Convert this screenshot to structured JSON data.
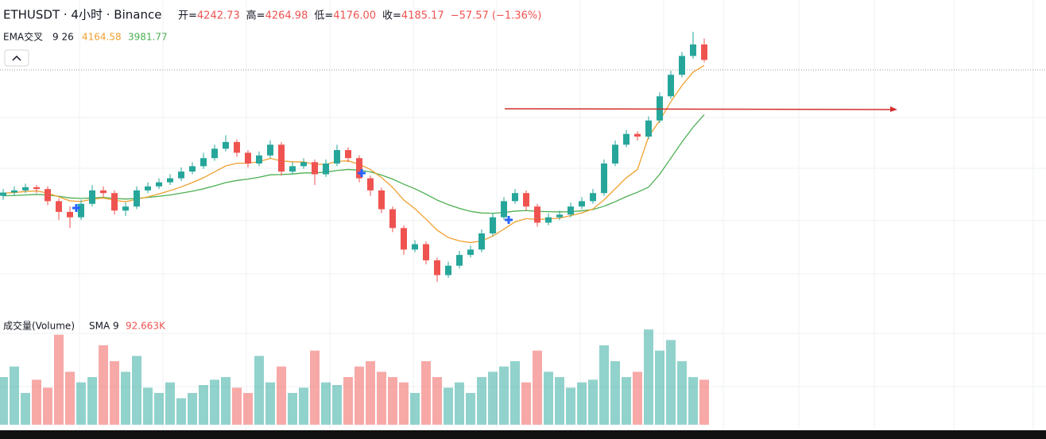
{
  "header": {
    "symbol": "ETHUSDT · 4小时 · Binance",
    "ohlc": [
      {
        "label": "开=",
        "value": "4242.73"
      },
      {
        "label": "高=",
        "value": "4264.98"
      },
      {
        "label": "低=",
        "value": "4176.00"
      },
      {
        "label": "收=",
        "value": "4185.17"
      }
    ],
    "change": "−57.57 (−1.36%)",
    "indicator": "EMA交叉",
    "params": "9 26",
    "ema_values": [
      "4164.58",
      "3981.77"
    ],
    "volume_title": "成交量(Volume)",
    "volume_sma_label": "SMA 9",
    "volume_sma": "92.663K"
  },
  "chart_data": {
    "type": "candlestick",
    "up_color": "#26a69a",
    "down_color": "#ef5350",
    "candles": [
      [
        3680,
        3705,
        3665,
        3692
      ],
      [
        3692,
        3715,
        3680,
        3700
      ],
      [
        3700,
        3725,
        3690,
        3712
      ],
      [
        3712,
        3720,
        3690,
        3705
      ],
      [
        3705,
        3715,
        3645,
        3660
      ],
      [
        3660,
        3670,
        3590,
        3620
      ],
      [
        3620,
        3640,
        3560,
        3600
      ],
      [
        3600,
        3665,
        3590,
        3650
      ],
      [
        3650,
        3720,
        3640,
        3700
      ],
      [
        3700,
        3715,
        3675,
        3690
      ],
      [
        3690,
        3700,
        3610,
        3625
      ],
      [
        3625,
        3655,
        3605,
        3640
      ],
      [
        3640,
        3715,
        3630,
        3700
      ],
      [
        3700,
        3730,
        3690,
        3715
      ],
      [
        3715,
        3745,
        3705,
        3730
      ],
      [
        3730,
        3760,
        3720,
        3745
      ],
      [
        3745,
        3785,
        3735,
        3770
      ],
      [
        3770,
        3805,
        3760,
        3790
      ],
      [
        3790,
        3840,
        3780,
        3820
      ],
      [
        3820,
        3870,
        3810,
        3855
      ],
      [
        3855,
        3905,
        3845,
        3880
      ],
      [
        3880,
        3890,
        3825,
        3840
      ],
      [
        3840,
        3850,
        3785,
        3800
      ],
      [
        3800,
        3845,
        3790,
        3830
      ],
      [
        3830,
        3885,
        3820,
        3870
      ],
      [
        3870,
        3880,
        3755,
        3770
      ],
      [
        3770,
        3805,
        3760,
        3790
      ],
      [
        3790,
        3820,
        3780,
        3805
      ],
      [
        3805,
        3815,
        3720,
        3760
      ],
      [
        3760,
        3815,
        3750,
        3800
      ],
      [
        3800,
        3870,
        3790,
        3850
      ],
      [
        3850,
        3860,
        3805,
        3820
      ],
      [
        3820,
        3830,
        3730,
        3745
      ],
      [
        3745,
        3755,
        3680,
        3700
      ],
      [
        3700,
        3710,
        3615,
        3630
      ],
      [
        3630,
        3640,
        3545,
        3560
      ],
      [
        3560,
        3570,
        3460,
        3480
      ],
      [
        3480,
        3515,
        3470,
        3500
      ],
      [
        3500,
        3510,
        3425,
        3440
      ],
      [
        3440,
        3450,
        3360,
        3385
      ],
      [
        3385,
        3435,
        3375,
        3420
      ],
      [
        3420,
        3475,
        3410,
        3460
      ],
      [
        3460,
        3495,
        3450,
        3480
      ],
      [
        3480,
        3555,
        3470,
        3540
      ],
      [
        3540,
        3615,
        3530,
        3600
      ],
      [
        3600,
        3675,
        3590,
        3660
      ],
      [
        3660,
        3705,
        3650,
        3690
      ],
      [
        3690,
        3700,
        3625,
        3640
      ],
      [
        3640,
        3650,
        3565,
        3580
      ],
      [
        3580,
        3615,
        3570,
        3600
      ],
      [
        3600,
        3625,
        3590,
        3610
      ],
      [
        3610,
        3655,
        3600,
        3640
      ],
      [
        3640,
        3675,
        3630,
        3660
      ],
      [
        3660,
        3705,
        3650,
        3690
      ],
      [
        3690,
        3815,
        3680,
        3800
      ],
      [
        3800,
        3885,
        3790,
        3870
      ],
      [
        3870,
        3925,
        3860,
        3910
      ],
      [
        3910,
        3920,
        3885,
        3900
      ],
      [
        3900,
        3975,
        3890,
        3960
      ],
      [
        3960,
        4065,
        3950,
        4050
      ],
      [
        4050,
        4145,
        4040,
        4130
      ],
      [
        4130,
        4215,
        4120,
        4200
      ],
      [
        4200,
        4290,
        4190,
        4242.73
      ],
      [
        4242.73,
        4264.98,
        4176,
        4185.17
      ]
    ],
    "ema_fast": {
      "color": "#f0a030",
      "values": [
        3690,
        3692,
        3696,
        3698,
        3690,
        3676,
        3661,
        3659,
        3667,
        3672,
        3663,
        3658,
        3667,
        3676,
        3687,
        3699,
        3713,
        3729,
        3747,
        3769,
        3791,
        3801,
        3801,
        3807,
        3819,
        3810,
        3806,
        3806,
        3797,
        3797,
        3808,
        3810,
        3797,
        3778,
        3748,
        3711,
        3664,
        3632,
        3593,
        3552,
        3525,
        3512,
        3506,
        3512,
        3530,
        3556,
        3583,
        3595,
        3592,
        3594,
        3597,
        3606,
        3616,
        3631,
        3665,
        3706,
        3747,
        3778,
        3900,
        3960,
        4030,
        4090,
        4140,
        4164.58
      ]
    },
    "ema_slow": {
      "color": "#4caf50",
      "values": [
        3680,
        3681,
        3683,
        3685,
        3683,
        3678,
        3672,
        3670,
        3672,
        3674,
        3670,
        3668,
        3670,
        3674,
        3678,
        3683,
        3690,
        3697,
        3706,
        3717,
        3729,
        3737,
        3742,
        3749,
        3758,
        3759,
        3761,
        3765,
        3765,
        3768,
        3774,
        3778,
        3775,
        3769,
        3757,
        3742,
        3723,
        3706,
        3686,
        3664,
        3647,
        3633,
        3622,
        3616,
        3615,
        3618,
        3623,
        3625,
        3622,
        3621,
        3620,
        3621,
        3624,
        3629,
        3641,
        3658,
        3677,
        3693,
        3712,
        3760,
        3820,
        3880,
        3935,
        3981.77
      ]
    },
    "volume": [
      90,
      110,
      60,
      85,
      70,
      170,
      100,
      80,
      90,
      150,
      120,
      100,
      130,
      70,
      60,
      80,
      50,
      60,
      75,
      85,
      90,
      70,
      60,
      130,
      80,
      110,
      60,
      70,
      140,
      80,
      75,
      90,
      110,
      120,
      100,
      90,
      80,
      60,
      120,
      90,
      70,
      80,
      60,
      90,
      100,
      110,
      120,
      80,
      140,
      100,
      90,
      70,
      80,
      85,
      150,
      120,
      90,
      100,
      180,
      140,
      160,
      120,
      90,
      85
    ]
  }
}
